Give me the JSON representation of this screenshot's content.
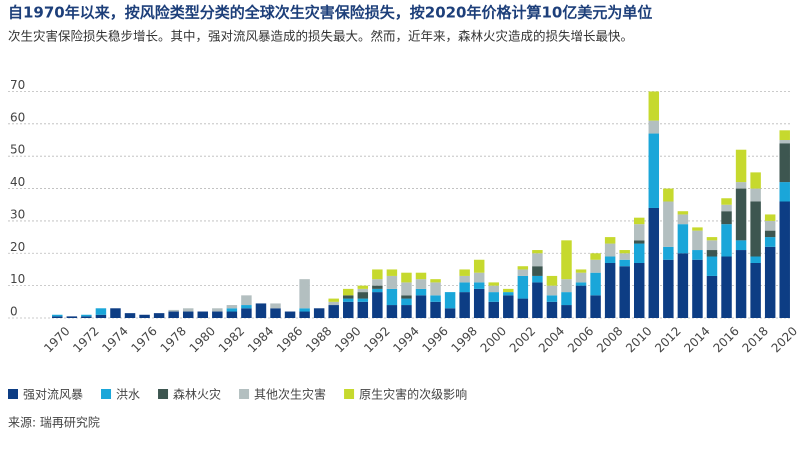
{
  "chart_data": {
    "type": "stacked_bar",
    "title": "自1970年以来，按风险类型分类的全球次生灾害保险损失，按2020年价格计算10亿美元为单位",
    "subtitle": "次生灾害保险损失稳步增长。其中，强对流风暴造成的损失最大。然而，近年来，森林火灾造成的损失增长最快。",
    "source": "来源: 瑞再研究院",
    "categories": [
      "1970",
      null,
      "1972",
      null,
      "1974",
      null,
      "1976",
      null,
      "1978",
      null,
      "1980",
      null,
      "1982",
      null,
      "1984",
      null,
      "1986",
      null,
      "1988",
      null,
      "1990",
      null,
      "1992",
      null,
      "1994",
      null,
      "1996",
      null,
      "1998",
      null,
      "2000",
      null,
      "2002",
      null,
      "2004",
      null,
      "2006",
      null,
      "2008",
      null,
      "2010",
      null,
      "2012",
      null,
      "2014",
      null,
      "2016",
      null,
      "2018",
      null,
      "2020"
    ],
    "series": [
      {
        "name": "强对流风暴",
        "color": "#0d3d84",
        "values": [
          0.5,
          0.5,
          0.5,
          1,
          3,
          1.5,
          1,
          1.5,
          2,
          2,
          2,
          2,
          2,
          3,
          4.5,
          3,
          2,
          2,
          3,
          4,
          5,
          5,
          8,
          4,
          4,
          7,
          5,
          3,
          8,
          9,
          5,
          7,
          6,
          11,
          5,
          4,
          10,
          7,
          17,
          16,
          17,
          34,
          18,
          20,
          18,
          13,
          19,
          21,
          17,
          22,
          36
        ]
      },
      {
        "name": "洪水",
        "color": "#1aa6d9",
        "values": [
          0.5,
          0,
          0.5,
          2,
          0,
          0,
          0,
          0,
          0,
          0,
          0,
          0,
          1,
          1,
          0,
          0,
          0,
          1,
          0,
          0,
          1,
          1,
          1,
          5,
          2,
          2,
          2,
          5,
          3,
          2,
          3,
          1,
          7,
          2,
          2,
          4,
          1,
          7,
          2,
          2,
          6,
          23,
          4,
          9,
          3,
          6,
          10,
          3,
          2,
          3,
          6
        ]
      },
      {
        "name": "森林火灾",
        "color": "#3d5650",
        "values": [
          0,
          0,
          0,
          0,
          0,
          0,
          0,
          0,
          0,
          0,
          0,
          0,
          0,
          0,
          0,
          0,
          0,
          0,
          0,
          0,
          1,
          2,
          1,
          0,
          1,
          0,
          0,
          0,
          0,
          0,
          0,
          0,
          0,
          3,
          0,
          0,
          0,
          0,
          0,
          0,
          1,
          0,
          0,
          0,
          0,
          2,
          4,
          16,
          17,
          2,
          12
        ]
      },
      {
        "name": "其他次生灾害",
        "color": "#b3bfc0",
        "values": [
          0,
          0,
          0,
          0,
          0,
          0,
          0,
          0,
          0.5,
          1,
          0,
          1,
          1,
          3,
          0,
          1.5,
          0,
          9,
          0,
          1,
          0,
          1,
          2,
          4,
          4,
          3,
          4,
          0,
          2,
          3,
          2,
          0,
          2,
          4,
          3,
          4,
          3,
          4,
          4,
          2,
          5,
          4,
          14,
          3,
          6,
          3,
          2,
          2,
          4,
          3,
          1
        ]
      },
      {
        "name": "原生灾害的次级影响",
        "color": "#c6d92e",
        "values": [
          0,
          0,
          0,
          0,
          0,
          0,
          0,
          0,
          0,
          0,
          0,
          0,
          0,
          0,
          0,
          0,
          0,
          0,
          0,
          1,
          2,
          1,
          3,
          2,
          3,
          2,
          1,
          0,
          2,
          4,
          1,
          1,
          1,
          1,
          3,
          12,
          1,
          2,
          2,
          1,
          2,
          9,
          4,
          1,
          1,
          1,
          2,
          10,
          5,
          2,
          3
        ]
      }
    ],
    "ylim": [
      0,
      72
    ],
    "yticks": [
      0,
      10,
      20,
      30,
      40,
      50,
      60,
      70
    ],
    "grid": true
  }
}
